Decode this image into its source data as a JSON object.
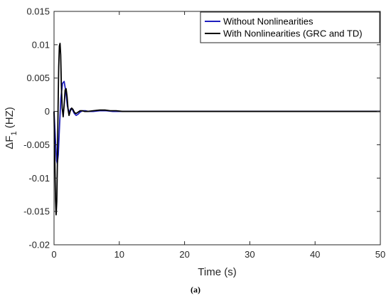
{
  "caption": "(a)",
  "chart_data": {
    "type": "line",
    "title": "",
    "xlabel": "Time (s)",
    "ylabel": "ΔF",
    "ylabel_subscript": "1",
    "ylabel_unit": " (HZ)",
    "xlim": [
      0,
      50
    ],
    "ylim": [
      -0.02,
      0.015
    ],
    "xticks": [
      0,
      10,
      20,
      30,
      40,
      50
    ],
    "xtick_labels": [
      "0",
      "10",
      "20",
      "30",
      "40",
      "50"
    ],
    "yticks": [
      -0.02,
      -0.015,
      -0.01,
      -0.005,
      0,
      0.005,
      0.01,
      0.015
    ],
    "ytick_labels": [
      "-0.02",
      "-0.015",
      "-0.01",
      "-0.005",
      "0",
      "0.005",
      "0.01",
      "0.015"
    ],
    "grid": false,
    "legend_position": "top-right",
    "series": [
      {
        "name": "Without Nonlinearities",
        "color": "#1f1fbf",
        "x": [
          0,
          0.2,
          0.4,
          0.5,
          0.65,
          0.85,
          1.05,
          1.3,
          1.55,
          1.8,
          2.05,
          2.3,
          2.55,
          2.8,
          3.1,
          3.4,
          3.7,
          4.0,
          4.4,
          4.8,
          5.3,
          6,
          7,
          8,
          9,
          10,
          12,
          15,
          50
        ],
        "y": [
          0,
          -0.004,
          -0.0074,
          -0.0078,
          -0.0065,
          -0.002,
          0.002,
          0.0042,
          0.0045,
          0.003,
          0.0008,
          -0.0002,
          0.0004,
          0.0003,
          -0.0003,
          -0.0006,
          -0.0004,
          -0.0001,
          0.0001,
          0.0001,
          0,
          0,
          0.0001,
          0.0001,
          0,
          0,
          0,
          0,
          0
        ]
      },
      {
        "name": "With Nonlinearities (GRC and TD)",
        "color": "#000000",
        "x": [
          0,
          0.1,
          0.22,
          0.32,
          0.42,
          0.52,
          0.62,
          0.72,
          0.82,
          0.92,
          1.02,
          1.12,
          1.25,
          1.4,
          1.55,
          1.7,
          1.85,
          2.0,
          2.15,
          2.3,
          2.5,
          2.7,
          2.9,
          3.15,
          3.4,
          3.7,
          4.0,
          4.3,
          4.7,
          5.2,
          6,
          7,
          7.8,
          8.6,
          9.5,
          10.5,
          12,
          15,
          50
        ],
        "y": [
          0,
          -0.006,
          -0.013,
          -0.0155,
          -0.0135,
          -0.0075,
          0.0005,
          0.0068,
          0.0098,
          0.0102,
          0.0085,
          0.004,
          0.0005,
          -0.0008,
          0.001,
          0.0032,
          0.0034,
          0.0022,
          0.0003,
          -0.0006,
          0.0001,
          0.0005,
          0.0003,
          -0.0002,
          -0.0003,
          -0.0001,
          0.0001,
          0.0001,
          0,
          0,
          0.0001,
          0.0002,
          0.0002,
          0.0001,
          0.0001,
          0,
          0,
          0,
          0
        ]
      }
    ]
  }
}
